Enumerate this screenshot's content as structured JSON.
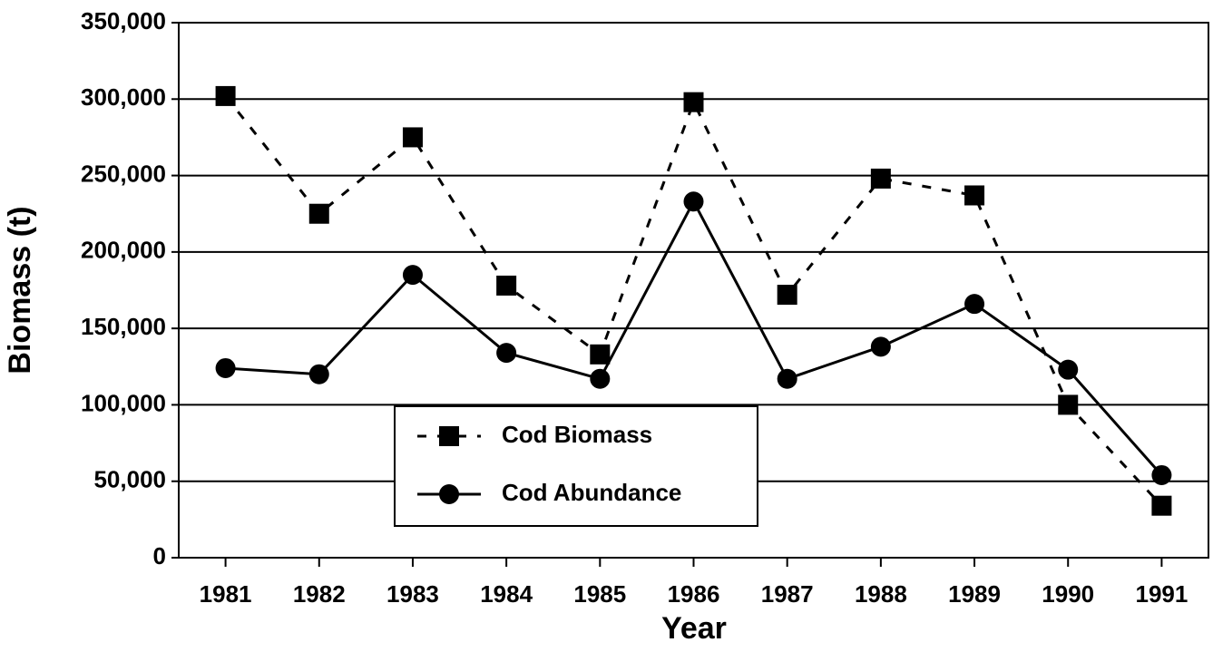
{
  "chart_data": {
    "type": "line",
    "x_label": "Year",
    "y_label": "Biomass (t)",
    "x": [
      1981,
      1982,
      1983,
      1984,
      1985,
      1986,
      1987,
      1988,
      1989,
      1990,
      1991
    ],
    "xlim": [
      1980.5,
      1991.5
    ],
    "xticks": [
      1981,
      1982,
      1983,
      1984,
      1985,
      1986,
      1987,
      1988,
      1989,
      1990,
      1991
    ],
    "ylim": [
      0,
      350000
    ],
    "yticks": [
      0,
      {
        "value": 50000,
        "label": "50,000"
      },
      {
        "value": 100000,
        "label": "100,000"
      },
      {
        "value": 150000,
        "label": "150,000"
      },
      {
        "value": 200000,
        "label": "200,000"
      },
      {
        "value": 250000,
        "label": "250,000"
      },
      {
        "value": 300000,
        "label": "300,000"
      },
      {
        "value": 350000,
        "label": "350,000"
      }
    ],
    "grid": true,
    "legend": "lower center",
    "series": [
      {
        "name": "Cod Biomass",
        "color": "#000000",
        "line_style": "dashed",
        "marker": "square",
        "values": [
          302000,
          225000,
          275000,
          178000,
          133000,
          298000,
          172000,
          248000,
          237000,
          100000,
          34000
        ]
      },
      {
        "name": "Cod Abundance",
        "color": "#000000",
        "line_style": "solid",
        "marker": "circle",
        "values": [
          124000,
          120000,
          185000,
          134000,
          117000,
          233000,
          117000,
          138000,
          166000,
          123000,
          54000
        ]
      }
    ]
  }
}
